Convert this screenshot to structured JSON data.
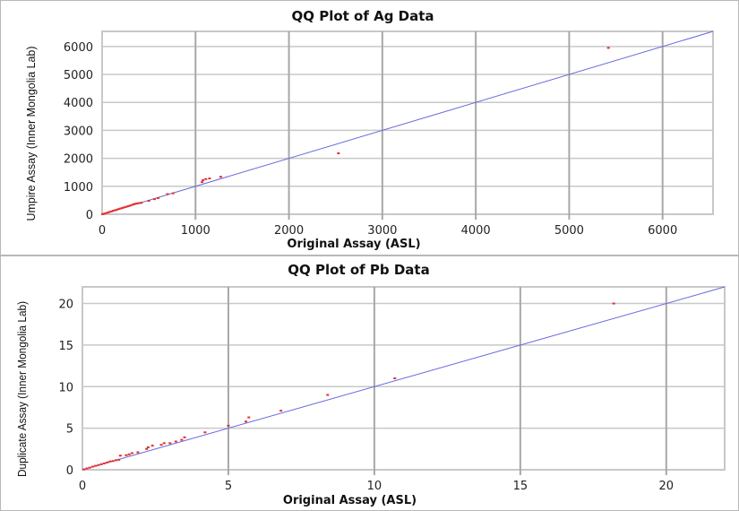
{
  "chart_data": [
    {
      "type": "scatter",
      "title": "QQ Plot of Ag Data",
      "xlabel": "Original Assay (ASL)",
      "ylabel": "Umpire Assay (Inner Mongolia Lab)",
      "xlim": [
        0,
        6540
      ],
      "ylim": [
        0,
        6540
      ],
      "xticks": [
        0,
        1000,
        2000,
        3000,
        4000,
        5000,
        6000
      ],
      "yticks": [
        0,
        1000,
        2000,
        3000,
        4000,
        5000,
        6000
      ],
      "grid": true,
      "point_color": "#e03030",
      "line_color": "#6666dd",
      "reference_line": "1:1",
      "points": [
        [
          5,
          5
        ],
        [
          20,
          18
        ],
        [
          40,
          38
        ],
        [
          60,
          60
        ],
        [
          80,
          82
        ],
        [
          100,
          102
        ],
        [
          120,
          125
        ],
        [
          140,
          145
        ],
        [
          160,
          165
        ],
        [
          180,
          188
        ],
        [
          200,
          208
        ],
        [
          220,
          228
        ],
        [
          240,
          250
        ],
        [
          260,
          268
        ],
        [
          280,
          290
        ],
        [
          300,
          310
        ],
        [
          320,
          335
        ],
        [
          340,
          360
        ],
        [
          360,
          380
        ],
        [
          380,
          390
        ],
        [
          400,
          400
        ],
        [
          420,
          410
        ],
        [
          500,
          480
        ],
        [
          560,
          540
        ],
        [
          600,
          580
        ],
        [
          700,
          720
        ],
        [
          760,
          750
        ],
        [
          1070,
          1150
        ],
        [
          1080,
          1220
        ],
        [
          1110,
          1260
        ],
        [
          1150,
          1280
        ],
        [
          1270,
          1340
        ],
        [
          2530,
          2180
        ],
        [
          5420,
          5950
        ]
      ]
    },
    {
      "type": "scatter",
      "title": "QQ Plot of Pb Data",
      "xlabel": "Original Assay (ASL)",
      "ylabel": "Duplicate Assay (Inner Mongolia Lab)",
      "xlim": [
        0,
        22
      ],
      "ylim": [
        0,
        22
      ],
      "xticks": [
        0,
        5,
        10,
        15,
        20
      ],
      "yticks": [
        0,
        5,
        10,
        15,
        20
      ],
      "grid": true,
      "point_color": "#e03030",
      "line_color": "#6666dd",
      "reference_line": "1:1",
      "points": [
        [
          0.05,
          0.05
        ],
        [
          0.15,
          0.15
        ],
        [
          0.25,
          0.25
        ],
        [
          0.35,
          0.37
        ],
        [
          0.45,
          0.47
        ],
        [
          0.55,
          0.57
        ],
        [
          0.65,
          0.67
        ],
        [
          0.75,
          0.77
        ],
        [
          0.85,
          0.88
        ],
        [
          0.95,
          1.0
        ],
        [
          1.05,
          1.05
        ],
        [
          1.15,
          1.15
        ],
        [
          1.25,
          1.2
        ],
        [
          1.3,
          1.7
        ],
        [
          1.5,
          1.75
        ],
        [
          1.6,
          1.85
        ],
        [
          1.7,
          2.0
        ],
        [
          1.9,
          2.1
        ],
        [
          2.2,
          2.5
        ],
        [
          2.25,
          2.7
        ],
        [
          2.4,
          2.9
        ],
        [
          2.7,
          3.0
        ],
        [
          2.8,
          3.2
        ],
        [
          3.0,
          3.2
        ],
        [
          3.2,
          3.4
        ],
        [
          3.4,
          3.6
        ],
        [
          3.5,
          3.9
        ],
        [
          4.2,
          4.5
        ],
        [
          5.0,
          5.3
        ],
        [
          5.6,
          5.8
        ],
        [
          5.7,
          6.3
        ],
        [
          6.8,
          7.1
        ],
        [
          8.4,
          9.0
        ],
        [
          10.7,
          11.0
        ],
        [
          18.2,
          20.0
        ]
      ]
    }
  ]
}
